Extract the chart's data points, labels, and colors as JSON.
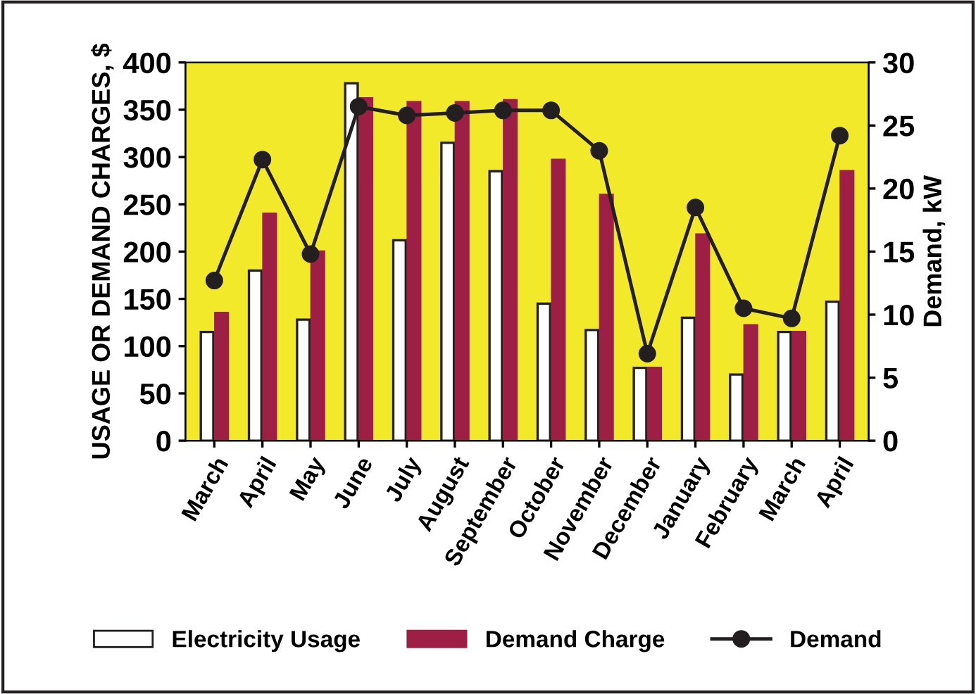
{
  "chart_data": {
    "type": "bar",
    "ylabel": "USAGE OR DEMAND CHARGES, $",
    "y2label": "Demand, kW",
    "categories": [
      "March",
      "April",
      "May",
      "June",
      "July",
      "August",
      "September",
      "October",
      "November",
      "December",
      "January",
      "February",
      "March",
      "April"
    ],
    "series": [
      {
        "name": "Electricity Usage",
        "color": "#ffffff",
        "values": [
          115,
          180,
          128,
          378,
          212,
          315,
          285,
          145,
          117,
          77,
          130,
          70,
          115,
          147
        ]
      },
      {
        "name": "Demand Charge",
        "color": "#9e1f45",
        "values": [
          135,
          240,
          200,
          362,
          358,
          358,
          360,
          297,
          260,
          77,
          218,
          122,
          115,
          285
        ]
      },
      {
        "name": "Demand",
        "type": "line",
        "axis": "y2",
        "color": "#231f20",
        "marker": "circle",
        "values": [
          12.7,
          22.3,
          14.8,
          26.5,
          25.8,
          26.0,
          26.2,
          26.2,
          23.0,
          6.9,
          18.5,
          10.5,
          9.7,
          24.2
        ]
      }
    ],
    "ylim": [
      0,
      400
    ],
    "yticks": [
      0,
      50,
      100,
      150,
      200,
      250,
      300,
      350,
      400
    ],
    "y2lim": [
      0,
      30
    ],
    "y2ticks": [
      0,
      5,
      10,
      15,
      20,
      25,
      30
    ],
    "grid": false,
    "legend": "bottom"
  }
}
